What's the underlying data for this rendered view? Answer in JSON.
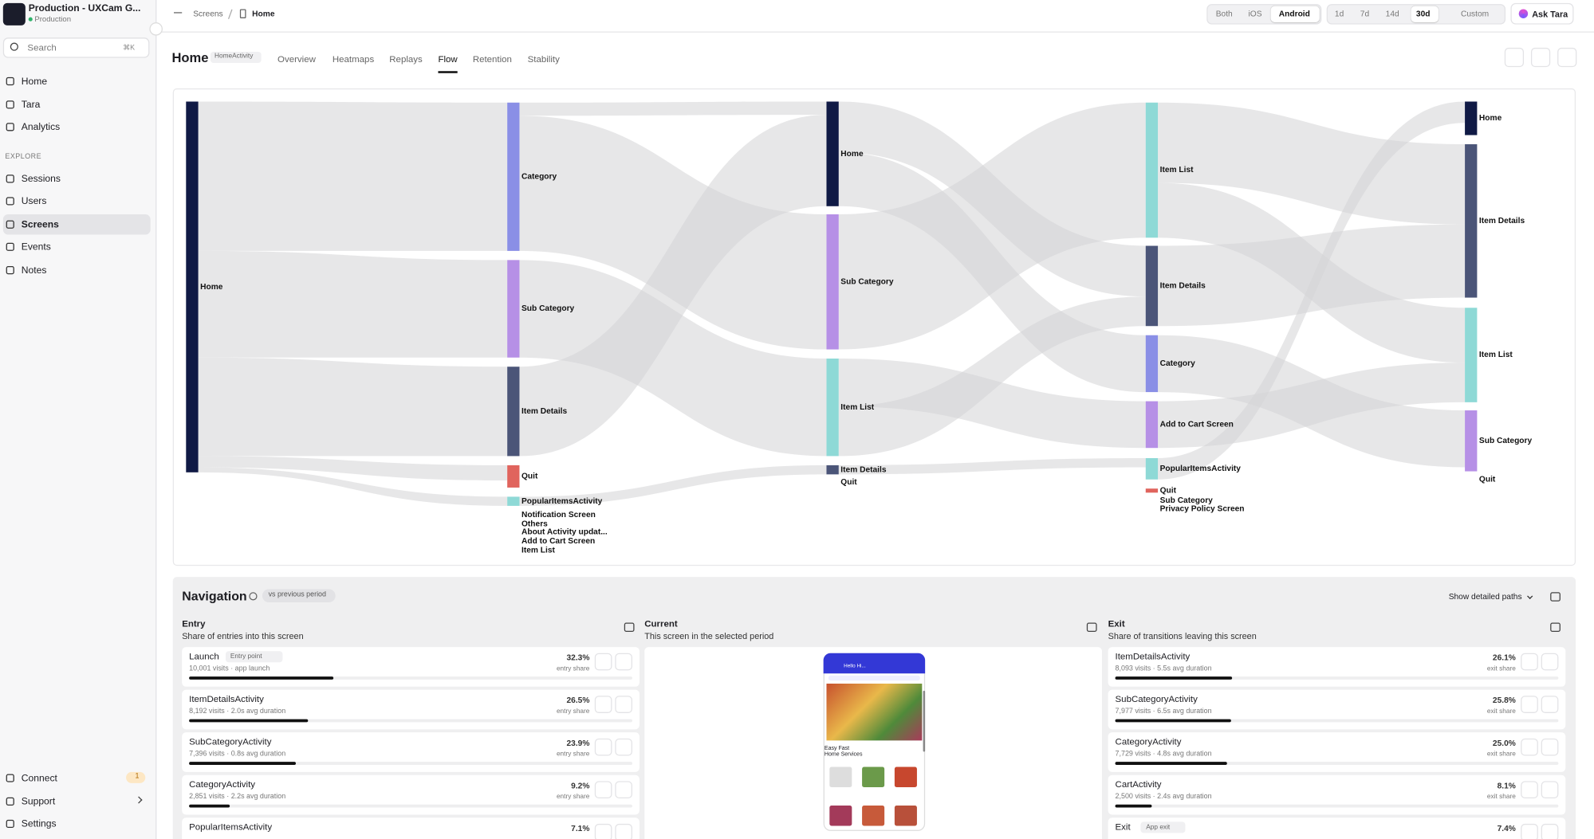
{
  "sidebar": {
    "org_name": "Production - UXCam G...",
    "org_env": "Production",
    "search": "Search",
    "search_shortcut": "⌘K",
    "nav": [
      "Home",
      "Tara",
      "Analytics"
    ],
    "explore_heading": "EXPLORE",
    "explore": [
      "Sessions",
      "Users",
      "Screens",
      "Events",
      "Notes"
    ],
    "footer": [
      "Connect",
      "Support",
      "Settings"
    ],
    "connect_badge": "1"
  },
  "topbar": {
    "breadcrumb": [
      "Screens",
      "Home"
    ],
    "platforms": [
      "Both",
      "iOS",
      "Android"
    ],
    "ranges": [
      "1d",
      "7d",
      "14d",
      "30d",
      "Custom"
    ],
    "ask": "Ask Tara"
  },
  "header": {
    "title": "Home",
    "badge": "HomeActivity",
    "tabs": [
      "Overview",
      "Heatmaps",
      "Replays",
      "Flow",
      "Retention",
      "Stability"
    ]
  },
  "flow": {
    "columns": [
      {
        "nodes": [
          "Home"
        ]
      },
      {
        "nodes": [
          "Category",
          "Sub Category",
          "Item Details",
          "Quit",
          "PopularItemsActivity",
          "Notification Screen",
          "Others",
          "About Activity updat...",
          "Add to Cart Screen",
          "Item List"
        ]
      },
      {
        "nodes": [
          "Home",
          "Sub Category",
          "Item List",
          "Item Details",
          "Quit"
        ]
      },
      {
        "nodes": [
          "Item List",
          "Item Details",
          "Category",
          "Add to Cart Screen",
          "PopularItemsActivity",
          "Quit",
          "Sub Category",
          "Privacy Policy Screen"
        ]
      },
      {
        "nodes": [
          "Home",
          "Item Details",
          "Item List",
          "Sub Category",
          "Quit"
        ]
      }
    ]
  },
  "navigation": {
    "title": "Navigation",
    "compare": "vs previous period",
    "detail_toggle": "Show detailed paths",
    "entry": {
      "title": "Entry",
      "subtitle": "Share of entries into this screen",
      "rows": [
        {
          "name": "Launch",
          "badge": "Entry point",
          "detail": "10,001 visits · app launch",
          "share": 32.3,
          "share_label": "32.3%",
          "share_caption": "entry share"
        },
        {
          "name": "ItemDetailsActivity",
          "detail": "8,192 visits · 2.0s avg duration",
          "share": 26.5,
          "share_label": "26.5%",
          "share_caption": "entry share"
        },
        {
          "name": "SubCategoryActivity",
          "detail": "7,396 visits · 0.8s avg duration",
          "share": 23.9,
          "share_label": "23.9%",
          "share_caption": "entry share"
        },
        {
          "name": "CategoryActivity",
          "detail": "2,851 visits · 2.2s avg duration",
          "share": 9.2,
          "share_label": "9.2%",
          "share_caption": "entry share"
        },
        {
          "name": "PopularItemsActivity",
          "share": 7.1,
          "share_label": "7.1%"
        }
      ]
    },
    "current": {
      "title": "Current",
      "subtitle": "This screen in the selected period",
      "preview_greeting": "Hello Hi...",
      "preview_heading": "Easy Fast Home Services"
    },
    "exit": {
      "title": "Exit",
      "subtitle": "Share of transitions leaving this screen",
      "rows": [
        {
          "name": "ItemDetailsActivity",
          "detail": "8,093 visits · 5.5s avg duration",
          "share": 26.1,
          "share_label": "26.1%",
          "share_caption": "exit share"
        },
        {
          "name": "SubCategoryActivity",
          "detail": "7,977 visits · 6.5s avg duration",
          "share": 25.8,
          "share_label": "25.8%",
          "share_caption": "exit share"
        },
        {
          "name": "CategoryActivity",
          "detail": "7,729 visits · 4.8s avg duration",
          "share": 25.0,
          "share_label": "25.0%",
          "share_caption": "exit share"
        },
        {
          "name": "CartActivity",
          "detail": "2,500 visits · 2.4s avg duration",
          "share": 8.1,
          "share_label": "8.1%",
          "share_caption": "exit share"
        },
        {
          "name": "Exit",
          "badge": "App exit",
          "share": 7.4,
          "share_label": "7.4%"
        }
      ]
    }
  }
}
